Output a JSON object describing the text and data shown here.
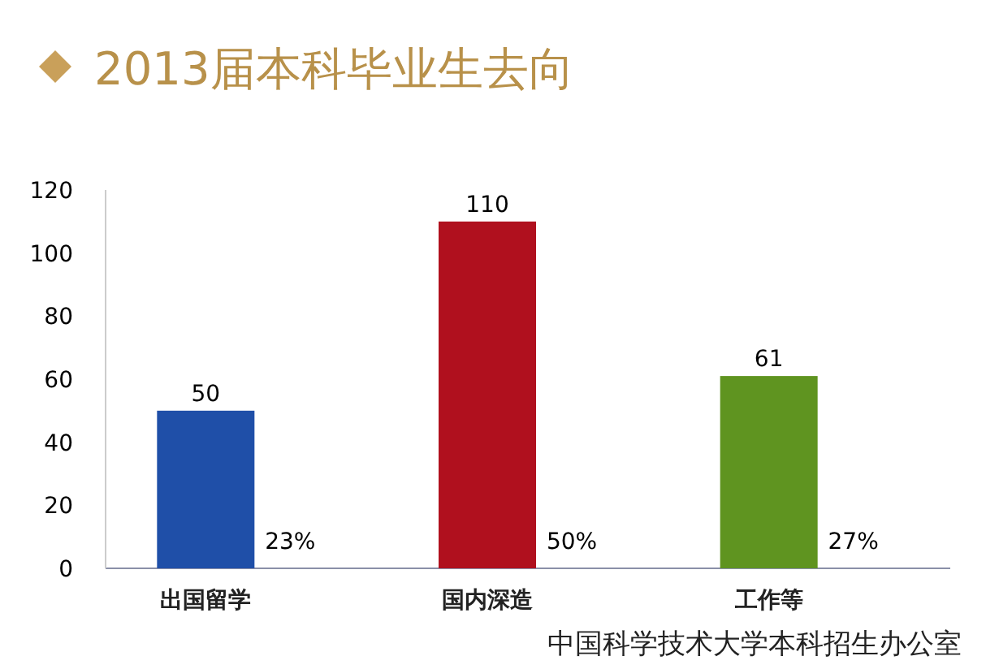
{
  "chart_data": {
    "type": "bar",
    "title": "2013届本科毕业生去向",
    "categories": [
      "出国留学",
      "国内深造",
      "工作等"
    ],
    "values": [
      50,
      110,
      61
    ],
    "colors": [
      "#1f4fa8",
      "#b0101e",
      "#5f9420"
    ],
    "ylim": [
      0,
      120
    ],
    "yticks": [
      0,
      20,
      40,
      60,
      80,
      100,
      120
    ],
    "data_labels": true,
    "annotations": [
      "23%",
      "50%",
      "27%",
      "中国科学技术大学本科招生办公室"
    ]
  }
}
